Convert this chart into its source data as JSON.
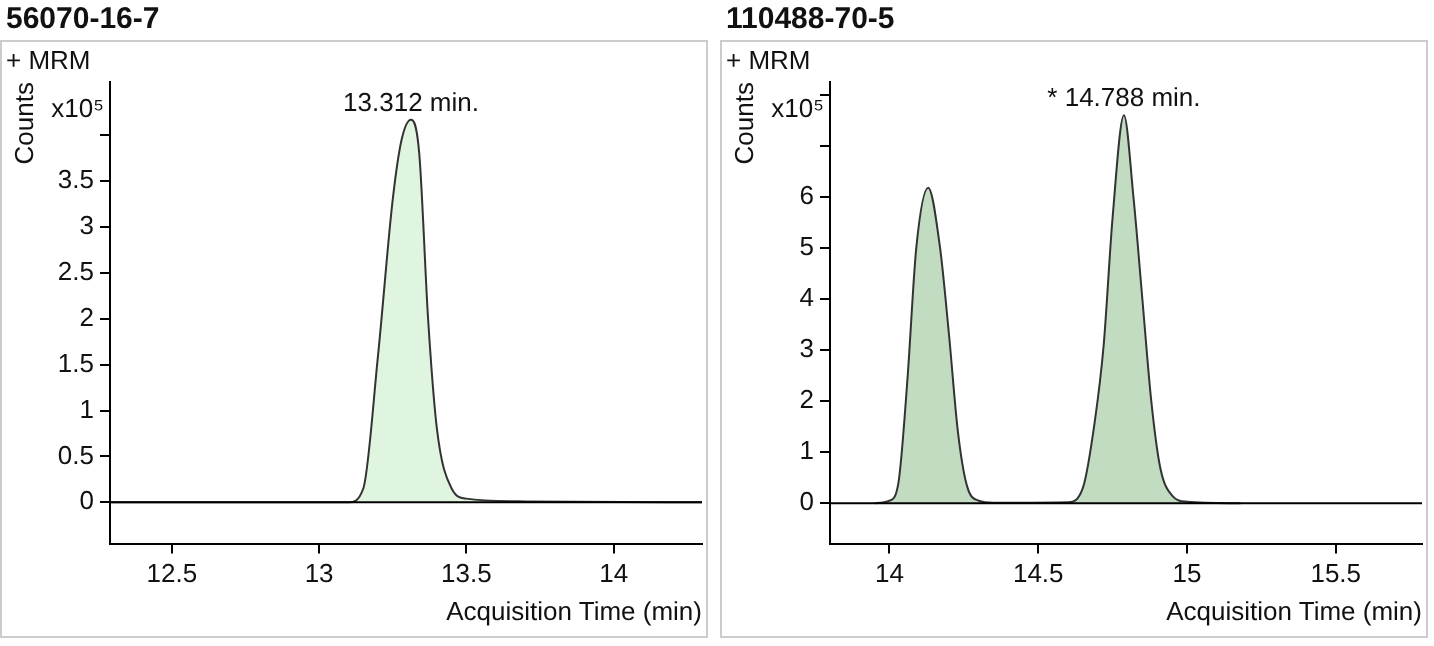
{
  "chart_data": [
    {
      "type": "area",
      "title": "56070-16-7",
      "xlabel": "Acquisition Time (min)",
      "ylabel": "Counts",
      "annotations": [
        "+ MRM",
        "x10⁵",
        {
          "text": "13.312 min.",
          "x": 13.312,
          "y": 4.17
        }
      ],
      "xlim": [
        12.29,
        14.3
      ],
      "xticks": [
        12.5,
        13,
        13.5,
        14
      ],
      "ylim": [
        -0.45,
        4.58
      ],
      "yticks": [
        0,
        0.5,
        1,
        1.5,
        2,
        2.5,
        3,
        3.5,
        {
          "value": 4,
          "label": null
        }
      ],
      "grid": false,
      "legend": false,
      "ref_lines": [
        {
          "axis": "y",
          "value": 0,
          "color": "#000000"
        }
      ],
      "series": [
        {
          "color": "#e0f5e0",
          "x": [
            12.29,
            13.1,
            13.15,
            13.2,
            13.25,
            13.28,
            13.312,
            13.34,
            13.37,
            13.4,
            13.45,
            13.5,
            13.7,
            14.3
          ],
          "values": [
            0,
            0,
            0.15,
            1.6,
            3.3,
            3.95,
            4.17,
            3.8,
            2.0,
            0.8,
            0.15,
            0.04,
            0.01,
            0
          ]
        }
      ]
    },
    {
      "type": "area",
      "title": "110488-70-5",
      "xlabel": "Acquisition Time (min)",
      "ylabel": "Counts",
      "annotations": [
        "+ MRM",
        "x10⁵",
        {
          "text": "* 14.788 min.",
          "x": 14.788,
          "y": 7.6
        }
      ],
      "xlim": [
        13.8,
        15.79
      ],
      "xticks": [
        14,
        14.5,
        15,
        15.5
      ],
      "ylim": [
        -0.79,
        8.25
      ],
      "yticks": [
        0,
        1,
        2,
        3,
        4,
        5,
        6,
        {
          "value": 7,
          "label": null
        },
        {
          "value": 8,
          "label": null
        }
      ],
      "grid": false,
      "legend": false,
      "ref_lines": [
        {
          "axis": "y",
          "value": 0,
          "color": "#000000"
        }
      ],
      "series": [
        {
          "color": "#c2dcc2",
          "x": [
            13.95,
            14.0,
            14.03,
            14.06,
            14.09,
            14.13,
            14.17,
            14.2,
            14.23,
            14.26,
            14.3,
            14.35,
            14.6,
            14.65,
            14.69,
            14.72,
            14.75,
            14.788,
            14.82,
            14.85,
            14.88,
            14.91,
            14.95,
            15.0,
            15.18
          ],
          "values": [
            0,
            0.05,
            0.4,
            2.4,
            5.0,
            6.18,
            5.0,
            3.3,
            1.4,
            0.35,
            0.05,
            0.01,
            0.02,
            0.3,
            1.6,
            3.1,
            5.6,
            7.6,
            6.0,
            4.0,
            2.0,
            0.7,
            0.15,
            0.03,
            0
          ]
        }
      ]
    }
  ]
}
